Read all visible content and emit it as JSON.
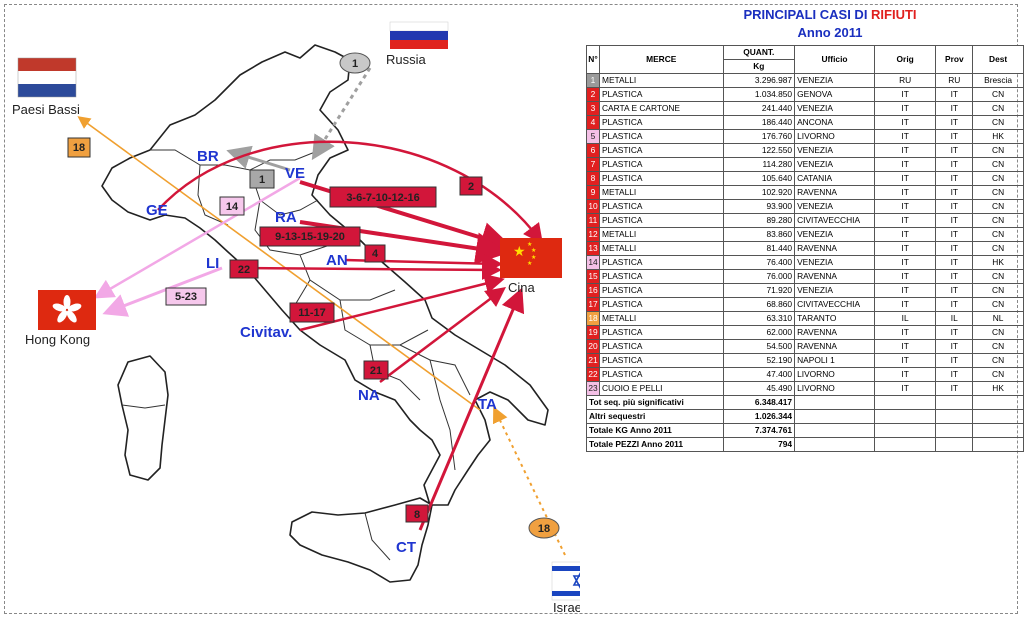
{
  "title": {
    "line1_a": "PRINCIPALI CASI DI ",
    "line1_b": "RIFIUTI",
    "line2": "Anno 2011"
  },
  "table": {
    "headers": {
      "no": "N°",
      "merce": "MERCE",
      "qty_top": "QUANT.",
      "qty_bottom": "Kg",
      "ufficio": "Ufficio",
      "orig": "Orig",
      "prov": "Prov",
      "dest": "Dest"
    },
    "rows": [
      {
        "no": "1",
        "merce": "METALLI",
        "qty": "3.296.987",
        "ufficio": "VENEZIA",
        "orig": "RU",
        "prov": "RU",
        "dest": "Brescia",
        "color": "#9a9a9a"
      },
      {
        "no": "2",
        "merce": "PLASTICA",
        "qty": "1.034.850",
        "ufficio": "GENOVA",
        "orig": "IT",
        "prov": "IT",
        "dest": "CN",
        "color": "#e02020"
      },
      {
        "no": "3",
        "merce": "CARTA E CARTONE",
        "qty": "241.440",
        "ufficio": "VENEZIA",
        "orig": "IT",
        "prov": "IT",
        "dest": "CN",
        "color": "#e02020"
      },
      {
        "no": "4",
        "merce": "PLASTICA",
        "qty": "186.440",
        "ufficio": "ANCONA",
        "orig": "IT",
        "prov": "IT",
        "dest": "CN",
        "color": "#e02020"
      },
      {
        "no": "5",
        "merce": "PLASTICA",
        "qty": "176.760",
        "ufficio": "LIVORNO",
        "orig": "IT",
        "prov": "IT",
        "dest": "HK",
        "color": "#f4c0e6"
      },
      {
        "no": "6",
        "merce": "PLASTICA",
        "qty": "122.550",
        "ufficio": "VENEZIA",
        "orig": "IT",
        "prov": "IT",
        "dest": "CN",
        "color": "#e02020"
      },
      {
        "no": "7",
        "merce": "PLASTICA",
        "qty": "114.280",
        "ufficio": "VENEZIA",
        "orig": "IT",
        "prov": "IT",
        "dest": "CN",
        "color": "#e02020"
      },
      {
        "no": "8",
        "merce": "PLASTICA",
        "qty": "105.640",
        "ufficio": "CATANIA",
        "orig": "IT",
        "prov": "IT",
        "dest": "CN",
        "color": "#e02020"
      },
      {
        "no": "9",
        "merce": "METALLI",
        "qty": "102.920",
        "ufficio": "RAVENNA",
        "orig": "IT",
        "prov": "IT",
        "dest": "CN",
        "color": "#e02020"
      },
      {
        "no": "10",
        "merce": "PLASTICA",
        "qty": "93.900",
        "ufficio": "VENEZIA",
        "orig": "IT",
        "prov": "IT",
        "dest": "CN",
        "color": "#e02020"
      },
      {
        "no": "11",
        "merce": "PLASTICA",
        "qty": "89.280",
        "ufficio": "CIVITAVECCHIA",
        "orig": "IT",
        "prov": "IT",
        "dest": "CN",
        "color": "#e02020"
      },
      {
        "no": "12",
        "merce": "METALLI",
        "qty": "83.860",
        "ufficio": "VENEZIA",
        "orig": "IT",
        "prov": "IT",
        "dest": "CN",
        "color": "#e02020"
      },
      {
        "no": "13",
        "merce": "METALLI",
        "qty": "81.440",
        "ufficio": "RAVENNA",
        "orig": "IT",
        "prov": "IT",
        "dest": "CN",
        "color": "#e02020"
      },
      {
        "no": "14",
        "merce": "PLASTICA",
        "qty": "76.400",
        "ufficio": "VENEZIA",
        "orig": "IT",
        "prov": "IT",
        "dest": "HK",
        "color": "#f4c0e6"
      },
      {
        "no": "15",
        "merce": "PLASTICA",
        "qty": "76.000",
        "ufficio": "RAVENNA",
        "orig": "IT",
        "prov": "IT",
        "dest": "CN",
        "color": "#e02020"
      },
      {
        "no": "16",
        "merce": "PLASTICA",
        "qty": "71.920",
        "ufficio": "VENEZIA",
        "orig": "IT",
        "prov": "IT",
        "dest": "CN",
        "color": "#e02020"
      },
      {
        "no": "17",
        "merce": "PLASTICA",
        "qty": "68.860",
        "ufficio": "CIVITAVECCHIA",
        "orig": "IT",
        "prov": "IT",
        "dest": "CN",
        "color": "#e02020"
      },
      {
        "no": "18",
        "merce": "METALLI",
        "qty": "63.310",
        "ufficio": "TARANTO",
        "orig": "IL",
        "prov": "IL",
        "dest": "NL",
        "color": "#f0a040"
      },
      {
        "no": "19",
        "merce": "PLASTICA",
        "qty": "62.000",
        "ufficio": "RAVENNA",
        "orig": "IT",
        "prov": "IT",
        "dest": "CN",
        "color": "#e02020"
      },
      {
        "no": "20",
        "merce": "PLASTICA",
        "qty": "54.500",
        "ufficio": "RAVENNA",
        "orig": "IT",
        "prov": "IT",
        "dest": "CN",
        "color": "#e02020"
      },
      {
        "no": "21",
        "merce": "PLASTICA",
        "qty": "52.190",
        "ufficio": "NAPOLI 1",
        "orig": "IT",
        "prov": "IT",
        "dest": "CN",
        "color": "#e02020"
      },
      {
        "no": "22",
        "merce": "PLASTICA",
        "qty": "47.400",
        "ufficio": "LIVORNO",
        "orig": "IT",
        "prov": "IT",
        "dest": "CN",
        "color": "#e02020"
      },
      {
        "no": "23",
        "merce": "CUOIO E PELLI",
        "qty": "45.490",
        "ufficio": "LIVORNO",
        "orig": "IT",
        "prov": "IT",
        "dest": "HK",
        "color": "#f4c0e6"
      }
    ],
    "totals": [
      {
        "label": "Tot seq. più significativi",
        "value": "6.348.417"
      },
      {
        "label": "Altri sequestri",
        "value": "1.026.344"
      },
      {
        "label": "Totale KG Anno 2011",
        "value": "7.374.761"
      },
      {
        "label": "Totale PEZZI Anno 2011",
        "value": "794"
      }
    ]
  },
  "map": {
    "countries": {
      "russia": "Russia",
      "netherlands": "Paesi Bassi",
      "china": "Cina",
      "hong_kong": "Hong Kong",
      "israel": "Israele"
    },
    "cities": {
      "br": "BR",
      "ve": "VE",
      "ge": "GE",
      "ra": "RA",
      "an": "AN",
      "li": "LI",
      "civ": "Civitav.",
      "na": "NA",
      "ta": "TA",
      "ct": "CT"
    },
    "route_labels": {
      "r1_top": "1",
      "r1_box": "1",
      "r2": "2",
      "ve_cn": "3-6-7-10-12-16",
      "ra_cn": "9-13-15-19-20",
      "an_cn": "4",
      "li_cn": "22",
      "li_hk": "5-23",
      "ve_hk": "14",
      "civ_cn": "11-17",
      "na_cn": "21",
      "ct_cn": "8",
      "r18_top": "18",
      "r18_bottom": "18"
    },
    "colors": {
      "china_route": "#d2163a",
      "hk_route": "#f2a8e6",
      "nl_route": "#f0a030",
      "ru_route": "#a0a0a0",
      "city_text": "#1f35d0"
    }
  }
}
